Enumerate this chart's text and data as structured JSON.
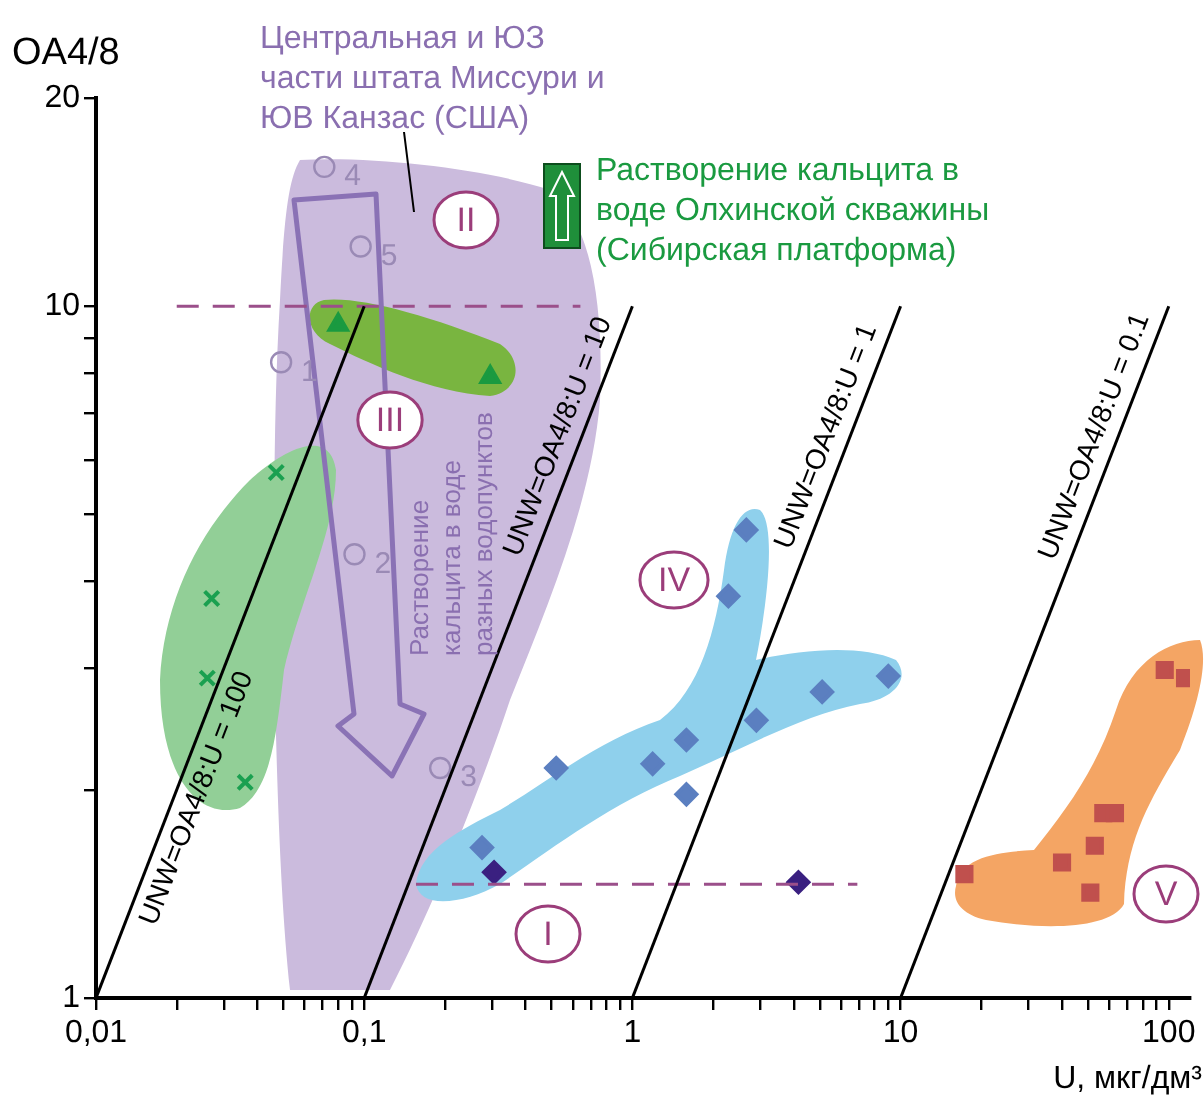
{
  "chart_data": {
    "type": "scatter",
    "xlabel": "U, мкг/дм³",
    "ylabel": "OA4/8",
    "log": "xy",
    "xlim": [
      0.01,
      120
    ],
    "ylim": [
      1,
      20
    ],
    "xticks": [
      {
        "value": 0.01,
        "label": "0,01"
      },
      {
        "value": 0.02,
        "label": null
      },
      {
        "value": 0.03,
        "label": null
      },
      {
        "value": 0.04,
        "label": null
      },
      {
        "value": 0.05,
        "label": null
      },
      {
        "value": 0.06,
        "label": null
      },
      {
        "value": 0.07,
        "label": null
      },
      {
        "value": 0.08,
        "label": null
      },
      {
        "value": 0.09,
        "label": null
      },
      {
        "value": 0.1,
        "label": "0,1"
      },
      {
        "value": 0.2,
        "label": null
      },
      {
        "value": 0.3,
        "label": null
      },
      {
        "value": 0.4,
        "label": null
      },
      {
        "value": 0.5,
        "label": null
      },
      {
        "value": 0.6,
        "label": null
      },
      {
        "value": 0.7,
        "label": null
      },
      {
        "value": 0.8,
        "label": null
      },
      {
        "value": 0.9,
        "label": null
      },
      1,
      {
        "value": 2,
        "label": null
      },
      {
        "value": 3,
        "label": null
      },
      {
        "value": 4,
        "label": null
      },
      {
        "value": 5,
        "label": null
      },
      {
        "value": 6,
        "label": null
      },
      {
        "value": 7,
        "label": null
      },
      {
        "value": 8,
        "label": null
      },
      {
        "value": 9,
        "label": null
      },
      10,
      {
        "value": 20,
        "label": null
      },
      {
        "value": 30,
        "label": null
      },
      {
        "value": 40,
        "label": null
      },
      {
        "value": 50,
        "label": null
      },
      {
        "value": 60,
        "label": null
      },
      {
        "value": 70,
        "label": null
      },
      {
        "value": 80,
        "label": null
      },
      {
        "value": 90,
        "label": null
      },
      100
    ],
    "yticks": [
      1,
      {
        "value": 2,
        "label": null
      },
      {
        "value": 3,
        "label": null
      },
      {
        "value": 4,
        "label": null
      },
      {
        "value": 5,
        "label": null
      },
      {
        "value": 6,
        "label": null
      },
      {
        "value": 7,
        "label": null
      },
      {
        "value": 8,
        "label": null
      },
      {
        "value": 9,
        "label": null
      },
      10,
      20
    ],
    "series": [
      {
        "type": "line",
        "name": "UNW=OA4/8:U = 100",
        "color": "#000000",
        "marker": "none",
        "line_style": "solid",
        "x": [
          0.01,
          0.1
        ],
        "values": [
          1,
          10
        ]
      },
      {
        "type": "line",
        "name": "UNW=OA4/8:U = 10",
        "color": "#000000",
        "marker": "none",
        "line_style": "solid",
        "x": [
          0.1,
          1
        ],
        "values": [
          1,
          10
        ]
      },
      {
        "type": "line",
        "name": "UNW=OA4/8:U = 1",
        "color": "#000000",
        "marker": "none",
        "line_style": "solid",
        "x": [
          1,
          10
        ],
        "values": [
          1,
          10
        ]
      },
      {
        "type": "line",
        "name": "UNW=OA4/8:U = 0.1",
        "color": "#000000",
        "marker": "none",
        "line_style": "solid",
        "x": [
          10,
          100
        ],
        "values": [
          1,
          10
        ]
      },
      {
        "type": "line",
        "color": "#9b4f8a",
        "marker": "none",
        "line_style": "dashed",
        "x": [
          0.02,
          0.64
        ],
        "values": [
          10,
          10
        ]
      },
      {
        "type": "line",
        "color": "#9b4f8a",
        "marker": "none",
        "line_style": "dashed",
        "x": [
          0.156,
          6.9
        ],
        "values": [
          1.46,
          1.46
        ]
      },
      {
        "color": "#9a8ab5",
        "marker": "circle",
        "x": [
          0.049,
          0.092,
          0.192,
          0.071,
          0.097
        ],
        "values": [
          8.3,
          4.38,
          2.15,
          15.9,
          12.2
        ]
      },
      {
        "color": "#1aa050",
        "marker": "cross",
        "x": [
          0.047,
          0.027,
          0.026,
          0.036
        ],
        "values": [
          5.75,
          3.78,
          2.9,
          2.05
        ]
      },
      {
        "color": "#1a9a40",
        "marker": "triangle",
        "x": [
          0.08,
          0.295
        ],
        "values": [
          9.4,
          7.9
        ]
      },
      {
        "color": "#5b7fc0",
        "marker": "diamond",
        "x": [
          0.275,
          0.52,
          1.19,
          1.59,
          1.59,
          2.9,
          5.1,
          9.0,
          2.28,
          2.66
        ],
        "values": [
          1.65,
          2.15,
          2.18,
          2.36,
          1.97,
          2.52,
          2.77,
          2.92,
          3.81,
          4.75
        ]
      },
      {
        "color": "#3a2080",
        "marker": "diamond",
        "x": [
          0.305,
          4.16
        ],
        "values": [
          1.52,
          1.47
        ]
      },
      {
        "color": "#c0504d",
        "marker": "square",
        "x": [
          17.3,
          40,
          53,
          51,
          57,
          63,
          96.6,
          115
        ],
        "values": [
          1.51,
          1.57,
          1.66,
          1.42,
          1.85,
          1.85,
          2.98,
          2.9
        ]
      }
    ],
    "annotations": [
      "Центральная и ЮЗ части штата Миссури и ЮВ Канзас (США)",
      "Растворение кальцита в воде Олхинской скважины (Сибирская платформа)",
      "Растворение кальцита в воде разных водопунктов",
      "I",
      "II",
      "III",
      "IV",
      "V",
      {
        "text": "1",
        "x": 0.049,
        "y": 8.3
      },
      {
        "text": "2",
        "x": 0.092,
        "y": 4.38
      },
      {
        "text": "3",
        "x": 0.192,
        "y": 2.15
      },
      {
        "text": "4",
        "x": 0.071,
        "y": 15.9
      },
      {
        "text": "5",
        "x": 0.097,
        "y": 12.2
      }
    ]
  }
}
